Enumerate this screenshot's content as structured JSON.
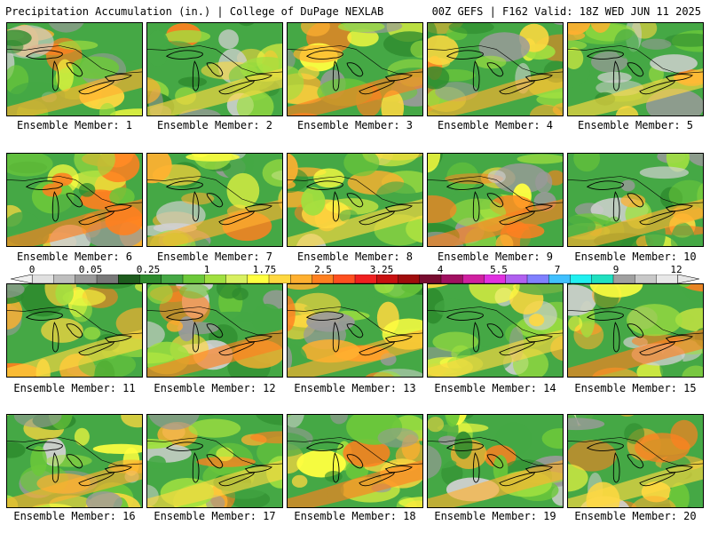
{
  "header": {
    "title": "Precipitation Accumulation (in.) | College of DuPage NEXLAB",
    "run_info": "00Z GEFS | F162 Valid: 18Z WED JUN 11 2025"
  },
  "legend": {
    "ticks": [
      "0",
      "0.05",
      "0.25",
      "1",
      "1.75",
      "2.5",
      "3.25",
      "4",
      "5.5",
      "7",
      "9",
      "12"
    ],
    "colors": [
      "#e0e0e0",
      "#bebebe",
      "#9a9a9a",
      "#787878",
      "#1e5c1e",
      "#2e8b2e",
      "#45a845",
      "#6cc83a",
      "#a0e040",
      "#d8f060",
      "#ffff40",
      "#ffd840",
      "#ffb030",
      "#ff8020",
      "#ff5020",
      "#f02020",
      "#c81010",
      "#a00c0c",
      "#780c30",
      "#a01060",
      "#d020a0",
      "#e030e0",
      "#b060f0",
      "#8080ff",
      "#40c0ff",
      "#20f0f0",
      "#20e0c0",
      "#a0a0a0",
      "#c8c8c8",
      "#e8e8e8"
    ]
  },
  "panels": [
    {
      "label": "Ensemble Member: 1"
    },
    {
      "label": "Ensemble Member: 2"
    },
    {
      "label": "Ensemble Member: 3"
    },
    {
      "label": "Ensemble Member: 4"
    },
    {
      "label": "Ensemble Member: 5"
    },
    {
      "label": "Ensemble Member: 6"
    },
    {
      "label": "Ensemble Member: 7"
    },
    {
      "label": "Ensemble Member: 8"
    },
    {
      "label": "Ensemble Member: 9"
    },
    {
      "label": "Ensemble Member: 10"
    },
    {
      "label": "Ensemble Member: 11"
    },
    {
      "label": "Ensemble Member: 12"
    },
    {
      "label": "Ensemble Member: 13"
    },
    {
      "label": "Ensemble Member: 14"
    },
    {
      "label": "Ensemble Member: 15"
    },
    {
      "label": "Ensemble Member: 16"
    },
    {
      "label": "Ensemble Member: 17"
    },
    {
      "label": "Ensemble Member: 18"
    },
    {
      "label": "Ensemble Member: 19"
    },
    {
      "label": "Ensemble Member: 20"
    }
  ]
}
